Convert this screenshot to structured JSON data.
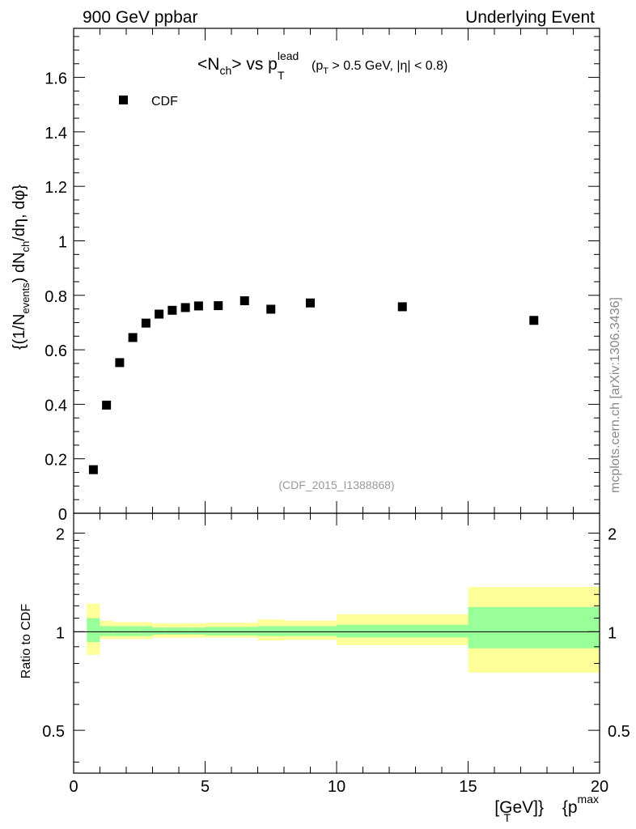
{
  "header": {
    "left": "900 GeV ppbar",
    "right": "Underlying Event"
  },
  "watermark": "mcplots.cern.ch [arXiv:1306.3436]",
  "analysis_id": "(CDF_2015_I1388868)",
  "chart_data": [
    {
      "type": "scatter",
      "title_parts": {
        "pre": "<N",
        "sub1": "ch",
        "mid": "> vs p",
        "sup": "lead",
        "sub2": "T",
        "cut_pre": "(p",
        "cut_sub": "T",
        "cut_post": " > 0.5 GeV, |η| < 0.8)"
      },
      "ylabel_parts": {
        "a": "{(1/N",
        "a_sub": "events",
        "b": ") dN",
        "b_sub": "ch",
        "c": "/dη, dφ}"
      },
      "xlim": [
        0,
        20
      ],
      "ylim": [
        0,
        1.78
      ],
      "yticks": [
        0,
        0.2,
        0.4,
        0.6,
        0.8,
        1,
        1.2,
        1.4,
        1.6
      ],
      "ytick_labels": [
        "0",
        "0.2",
        "0.4",
        "0.6",
        "0.8",
        "1",
        "1.2",
        "1.4",
        "1.6"
      ],
      "legend": {
        "position": "top-left",
        "label": "CDF",
        "marker_color": "#000000"
      },
      "series": [
        {
          "name": "CDF",
          "x": [
            0.75,
            1.25,
            1.75,
            2.25,
            2.75,
            3.25,
            3.75,
            4.25,
            4.75,
            5.5,
            6.5,
            7.5,
            9.0,
            12.5,
            17.5
          ],
          "y": [
            0.16,
            0.397,
            0.553,
            0.645,
            0.698,
            0.731,
            0.745,
            0.755,
            0.761,
            0.762,
            0.78,
            0.749,
            0.772,
            0.758,
            0.708
          ]
        }
      ]
    },
    {
      "type": "area",
      "ylabel": "Ratio to CDF",
      "xlabel_parts": {
        "pre": "{p",
        "sup": "max",
        "sub": "T",
        "post": " [GeV]}"
      },
      "xlim": [
        0,
        20
      ],
      "ylim": [
        0.37,
        2.3
      ],
      "log_y": true,
      "xticks": [
        0,
        5,
        10,
        15,
        20
      ],
      "xtick_labels": [
        "0",
        "5",
        "10",
        "15",
        "20"
      ],
      "yticks": [
        0.5,
        1,
        2
      ],
      "ytick_labels": [
        "0.5",
        "1",
        "2"
      ],
      "reference_line": 1,
      "band_colors": {
        "outer": "#ffff99",
        "inner": "#99ff99"
      },
      "bins": [
        {
          "x0": 0.5,
          "x1": 1.0,
          "outer": [
            0.85,
            1.22
          ],
          "inner": [
            0.93,
            1.1
          ]
        },
        {
          "x0": 1.0,
          "x1": 1.5,
          "outer": [
            0.95,
            1.08
          ],
          "inner": [
            0.97,
            1.04
          ]
        },
        {
          "x0": 1.5,
          "x1": 2.0,
          "outer": [
            0.95,
            1.07
          ],
          "inner": [
            0.97,
            1.04
          ]
        },
        {
          "x0": 2.0,
          "x1": 2.5,
          "outer": [
            0.95,
            1.07
          ],
          "inner": [
            0.97,
            1.04
          ]
        },
        {
          "x0": 2.5,
          "x1": 3.0,
          "outer": [
            0.95,
            1.07
          ],
          "inner": [
            0.97,
            1.04
          ]
        },
        {
          "x0": 3.0,
          "x1": 3.5,
          "outer": [
            0.96,
            1.06
          ],
          "inner": [
            0.98,
            1.03
          ]
        },
        {
          "x0": 3.5,
          "x1": 4.0,
          "outer": [
            0.96,
            1.06
          ],
          "inner": [
            0.98,
            1.03
          ]
        },
        {
          "x0": 4.0,
          "x1": 4.5,
          "outer": [
            0.96,
            1.06
          ],
          "inner": [
            0.98,
            1.03
          ]
        },
        {
          "x0": 4.5,
          "x1": 5.0,
          "outer": [
            0.96,
            1.06
          ],
          "inner": [
            0.98,
            1.03
          ]
        },
        {
          "x0": 5.0,
          "x1": 6.0,
          "outer": [
            0.96,
            1.065
          ],
          "inner": [
            0.975,
            1.035
          ]
        },
        {
          "x0": 6.0,
          "x1": 7.0,
          "outer": [
            0.96,
            1.065
          ],
          "inner": [
            0.975,
            1.035
          ]
        },
        {
          "x0": 7.0,
          "x1": 8.0,
          "outer": [
            0.94,
            1.09
          ],
          "inner": [
            0.97,
            1.04
          ]
        },
        {
          "x0": 8.0,
          "x1": 10.0,
          "outer": [
            0.945,
            1.08
          ],
          "inner": [
            0.97,
            1.04
          ]
        },
        {
          "x0": 10.0,
          "x1": 15.0,
          "outer": [
            0.91,
            1.13
          ],
          "inner": [
            0.96,
            1.05
          ]
        },
        {
          "x0": 15.0,
          "x1": 20.0,
          "outer": [
            0.75,
            1.37
          ],
          "inner": [
            0.89,
            1.19
          ]
        }
      ]
    }
  ]
}
